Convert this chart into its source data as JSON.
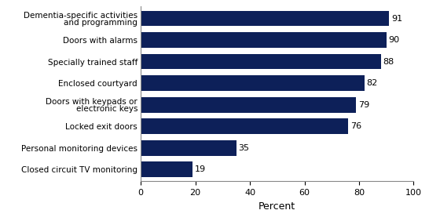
{
  "categories": [
    "Closed circuit TV monitoring",
    "Personal monitoring devices",
    "Locked exit doors",
    "Doors with keypads or\nelectronic keys",
    "Enclosed courtyard",
    "Specially trained staff",
    "Doors with alarms",
    "Dementia-specific activities\nand programming"
  ],
  "values": [
    19,
    35,
    76,
    79,
    82,
    88,
    90,
    91
  ],
  "bar_color": "#0d2059",
  "xlabel": "Percent",
  "xlim": [
    0,
    100
  ],
  "xticks": [
    0,
    20,
    40,
    60,
    80,
    100
  ],
  "background_color": "#ffffff",
  "bar_height": 0.72,
  "label_fontsize": 7.5,
  "tick_fontsize": 8,
  "xlabel_fontsize": 9,
  "value_fontsize": 8
}
